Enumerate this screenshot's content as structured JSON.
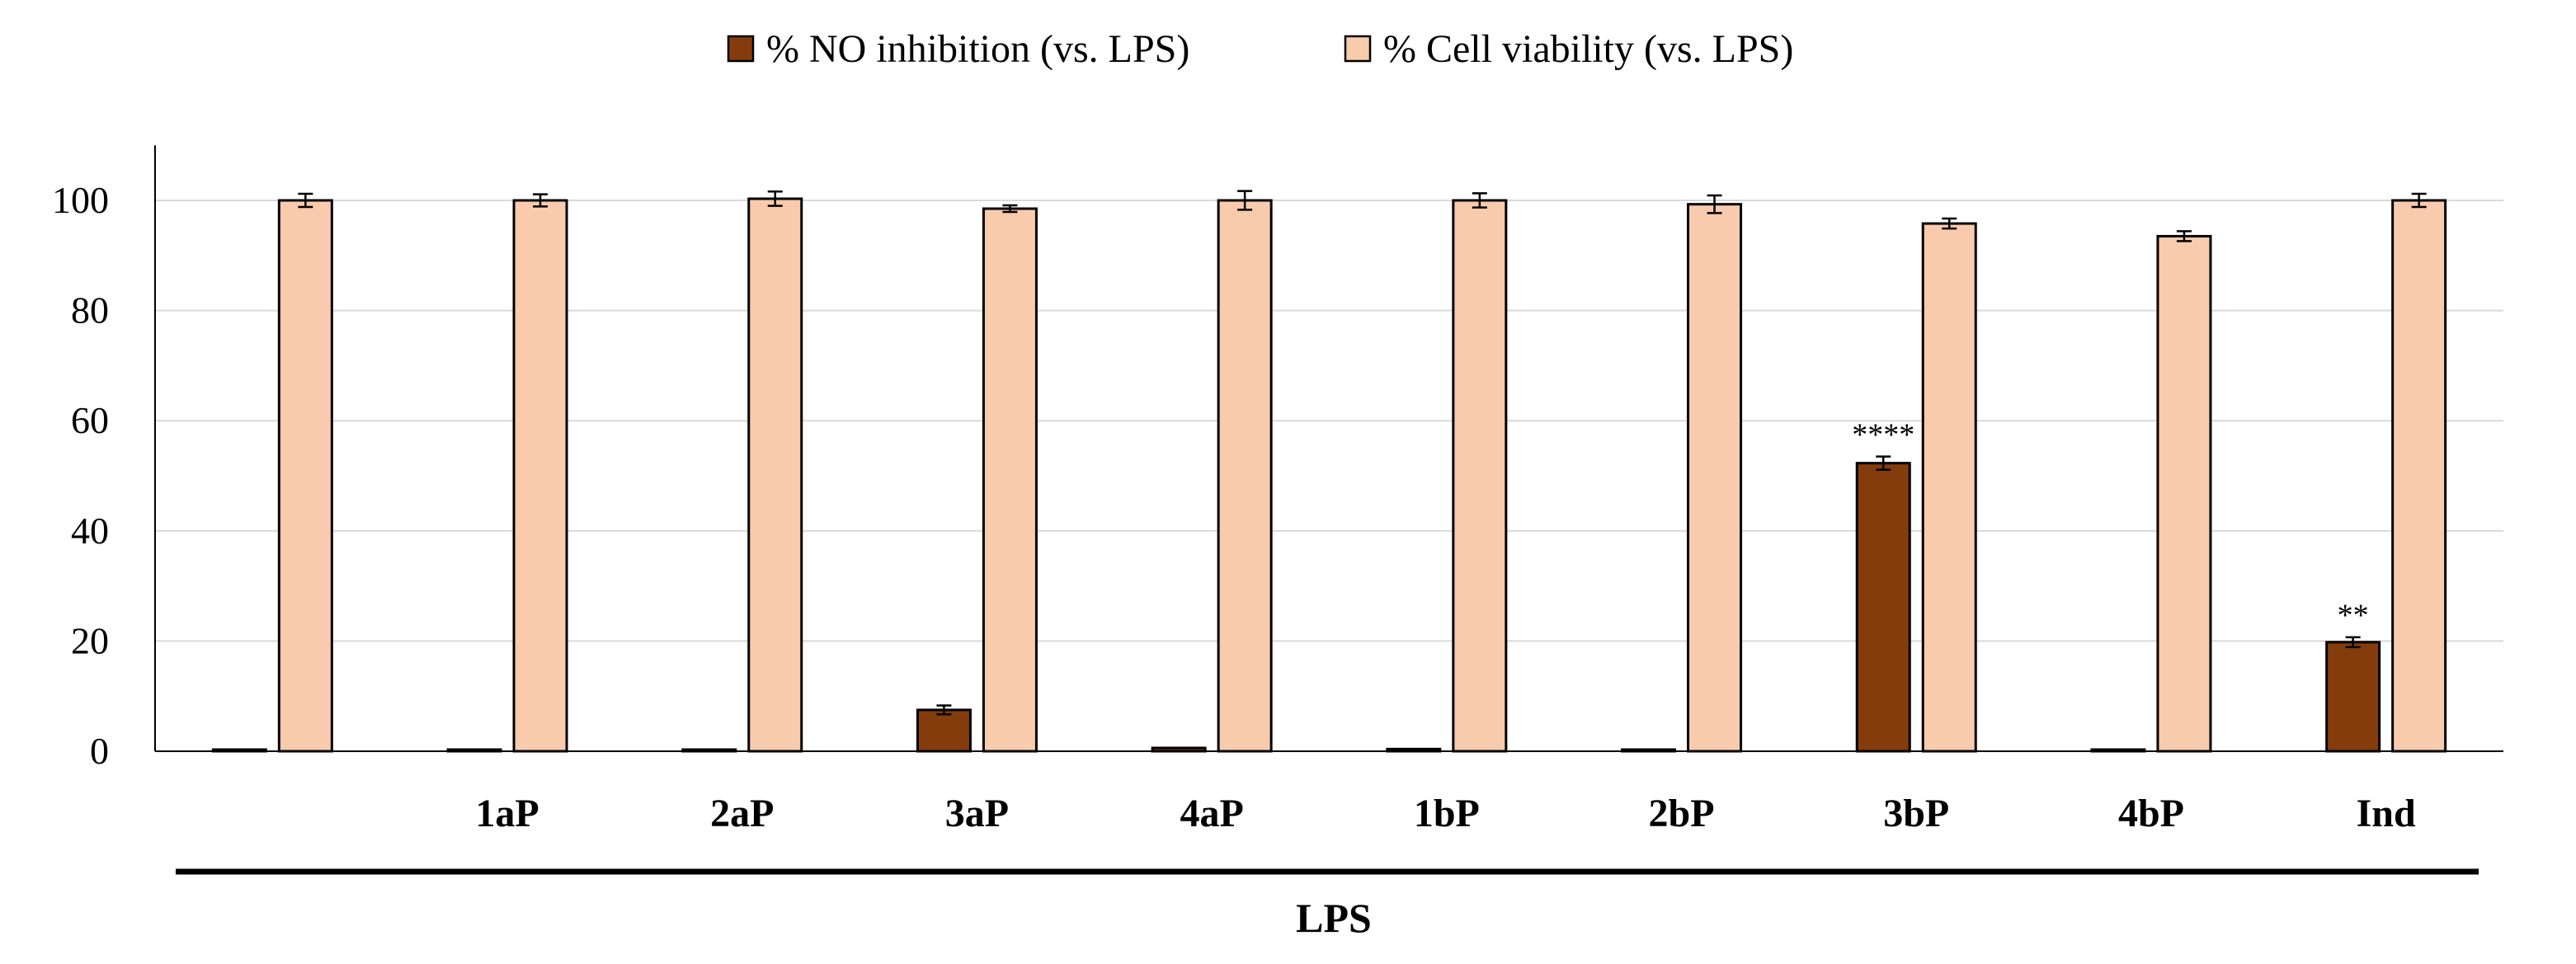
{
  "chart_data": {
    "type": "bar",
    "title": "",
    "xlabel": "",
    "ylabel": "",
    "ylim": [
      0,
      110
    ],
    "yticks": [
      0,
      20,
      40,
      60,
      80,
      100
    ],
    "gridlines": true,
    "legend_position": "top-center",
    "categories": [
      "",
      "1aP",
      "2aP",
      "3aP",
      "4aP",
      "1bP",
      "2bP",
      "3bP",
      "4bP",
      "Ind"
    ],
    "group_label": "LPS",
    "series": [
      {
        "name": "% NO inhibition (vs. LPS)",
        "color": "#843C0C",
        "values": [
          0,
          0.3,
          0.3,
          7.5,
          0.6,
          0.4,
          0.3,
          52.3,
          0.3,
          19.8
        ],
        "errors": [
          0,
          0,
          0,
          0.8,
          0,
          0,
          0,
          1.2,
          0,
          0.9
        ],
        "annotations": [
          "",
          "",
          "",
          "",
          "",
          "",
          "",
          "****",
          "",
          "**"
        ]
      },
      {
        "name": "% Cell viability (vs. LPS)",
        "color": "#F8CBAD",
        "values": [
          100,
          100,
          100.3,
          98.5,
          100,
          100,
          99.3,
          95.8,
          93.5,
          100
        ],
        "errors": [
          1.2,
          1.1,
          1.3,
          0.6,
          1.7,
          1.3,
          1.6,
          0.9,
          0.9,
          1.2
        ],
        "annotations": [
          "",
          "",
          "",
          "",
          "",
          "",
          "",
          "",
          "",
          ""
        ]
      }
    ]
  }
}
